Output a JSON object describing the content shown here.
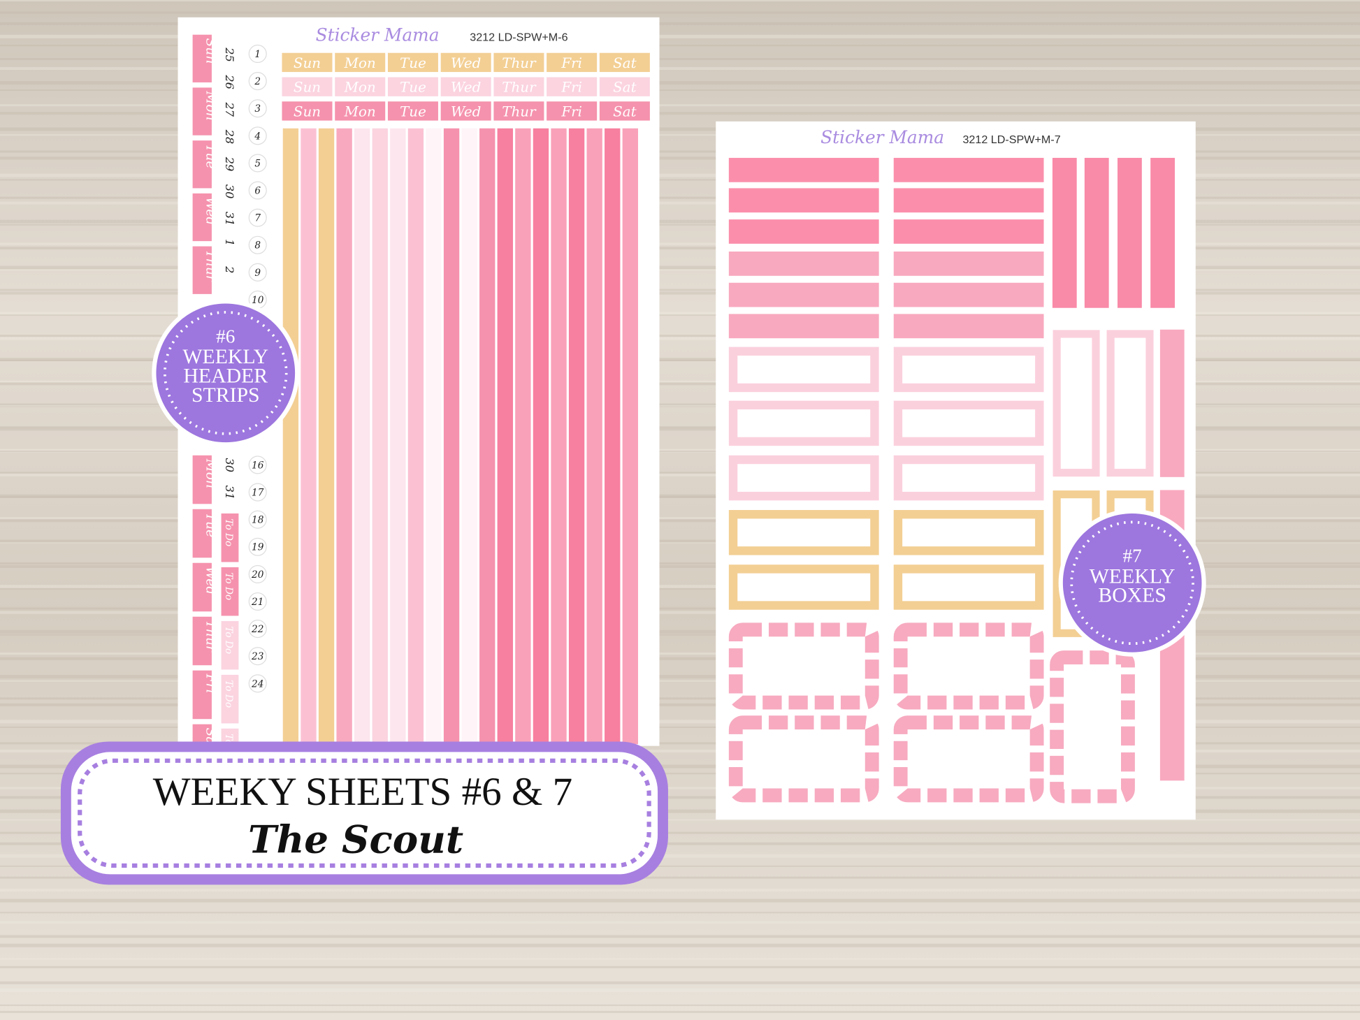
{
  "sheet6": {
    "brand": "Sticker Mama",
    "code": "3212 LD-SPW+M-6",
    "day_rows": [
      [
        "Sun",
        "Mon",
        "Tue",
        "Wed",
        "Thur",
        "Fri",
        "Sat"
      ],
      [
        "Sun",
        "Mon",
        "Tue",
        "Wed",
        "Thur",
        "Fri",
        "Sat"
      ],
      [
        "Sun",
        "Mon",
        "Tue",
        "Wed",
        "Thur",
        "Fri",
        "Sat"
      ]
    ],
    "side_days_top": [
      "Sun",
      "Mon",
      "Tue",
      "Wed",
      "Thur"
    ],
    "side_days_bottom": [
      "Mon",
      "Tue",
      "Wed",
      "Thur",
      "Fri",
      "Sa"
    ],
    "dates_a_top": [
      "25",
      "26",
      "27",
      "28",
      "29",
      "30",
      "31",
      "1",
      "2"
    ],
    "dates_a_bottom": [
      "30",
      "31",
      "To Do",
      "To Do",
      "To Do",
      "To Do",
      "To Do"
    ],
    "dates_b_top": [
      "1",
      "2",
      "3",
      "4",
      "5",
      "6",
      "7",
      "8",
      "9",
      "10"
    ],
    "dates_b_bottom": [
      "16",
      "17",
      "18",
      "19",
      "20",
      "21",
      "22",
      "23",
      "24"
    ]
  },
  "sheet7": {
    "brand": "Sticker Mama",
    "code": "3212 LD-SPW+M-7"
  },
  "badge6": {
    "number": "#6",
    "lines": [
      "WEEKLY",
      "HEADER",
      "STRIPS"
    ]
  },
  "badge7": {
    "number": "#7",
    "lines": [
      "WEEKLY",
      "BOXES"
    ]
  },
  "banner": {
    "title": "WEEKY SHEETS #6 & 7",
    "subtitle": "The Scout"
  }
}
